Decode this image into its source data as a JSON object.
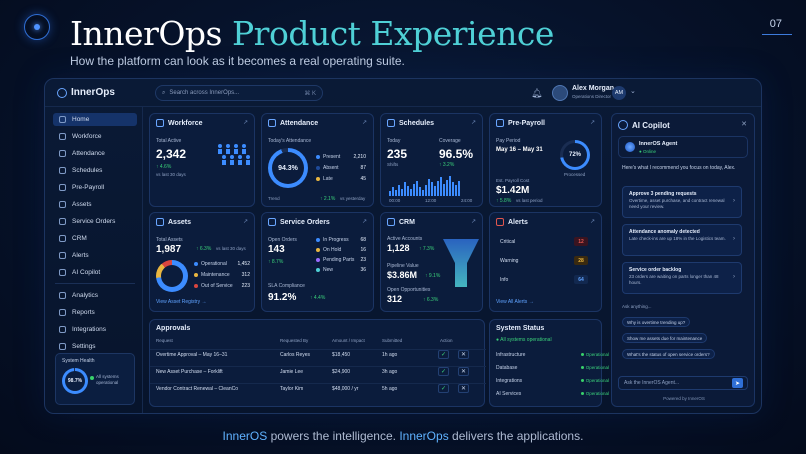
{
  "page_number": "07",
  "hero": {
    "title_white": "InnerOps",
    "title_accent": "Product Experience",
    "subtitle": "How the platform can look as it becomes a real operating suite."
  },
  "footer": {
    "p1": "InnerOS",
    "p2": " powers the intelligence. ",
    "p3": "InnerOps",
    "p4": " delivers the applications."
  },
  "app": {
    "brand": "InnerOps",
    "search_placeholder": "Search across InnerOps...",
    "search_shortcut": "⌘ K",
    "user": {
      "name": "Alex Morgan",
      "role": "Operations Director",
      "initials": "AM"
    },
    "nav": [
      "Home",
      "Workforce",
      "Attendance",
      "Schedules",
      "Pre-Payroll",
      "Assets",
      "Service Orders",
      "CRM",
      "Alerts",
      "AI Copilot",
      "Analytics",
      "Reports",
      "Integrations",
      "Settings"
    ],
    "system_health": {
      "title": "System Health",
      "value": "98.7%",
      "status": "All systems operational"
    }
  },
  "workforce": {
    "title": "Workforce",
    "label": "Total Active",
    "value": "2,342",
    "delta": "↑ 4.6%",
    "sub": "vs last 30 days"
  },
  "attendance": {
    "title": "Attendance",
    "label": "Today's Attendance",
    "value": "94.3%",
    "rows": [
      {
        "name": "Present",
        "val": "2,210",
        "color": "#3c8cff"
      },
      {
        "name": "Absent",
        "val": "87",
        "color": "#1e4a99"
      },
      {
        "name": "Late",
        "val": "45",
        "color": "#e9b640"
      }
    ],
    "trend_label": "Trend",
    "trend_delta": "↑ 2.1%",
    "trend_sub": "vs yesterday"
  },
  "schedules": {
    "title": "Schedules",
    "today_label": "Today",
    "today_value": "235",
    "today_sub": "Shifts",
    "coverage_label": "Coverage",
    "coverage_value": "96.5%",
    "coverage_delta": "↑ 3.2%",
    "bars": [
      4,
      7,
      5,
      9,
      6,
      11,
      8,
      6,
      10,
      12,
      7,
      5,
      9,
      14,
      11,
      8,
      12,
      15,
      10,
      13,
      16,
      11,
      9,
      12
    ],
    "axis": [
      "00:00",
      "12:00",
      "24:00"
    ]
  },
  "payroll": {
    "title": "Pre-Payroll",
    "period_label": "Pay Period",
    "period_value": "May 16 – May 31",
    "ring_value": "72%",
    "ring_fraction": 0.72,
    "ring_label": "Processed",
    "est_label": "Est. Payroll Cost",
    "est_value": "$1.42M",
    "est_delta": "↑ 5.8%",
    "est_sub": "vs last period"
  },
  "assets": {
    "title": "Assets",
    "label": "Total Assets",
    "value": "1,987",
    "delta": "↑ 6.3%",
    "sub": "vs last 30 days",
    "rows": [
      {
        "name": "Operational",
        "val": "1,452",
        "color": "#3c8cff"
      },
      {
        "name": "Maintenance",
        "val": "312",
        "color": "#e9b640"
      },
      {
        "name": "Out of Service",
        "val": "223",
        "color": "#d9453f"
      }
    ],
    "link": "View Asset Registry →"
  },
  "service_orders": {
    "title": "Service Orders",
    "label": "Open Orders",
    "value": "143",
    "delta": "↑ 8.7%",
    "rows": [
      {
        "name": "In Progress",
        "val": "68",
        "color": "#3c8cff"
      },
      {
        "name": "On Hold",
        "val": "16",
        "color": "#e9b640"
      },
      {
        "name": "Pending Parts",
        "val": "23",
        "color": "#9a6bff"
      },
      {
        "name": "New",
        "val": "36",
        "color": "#4fd0d6"
      }
    ],
    "sla_label": "SLA Compliance",
    "sla_value": "91.2%",
    "sla_delta": "↑ 4.4%"
  },
  "crm": {
    "title": "CRM",
    "r1_label": "Active Accounts",
    "r1_value": "1,128",
    "r1_delta": "↑ 7.3%",
    "r2_label": "Pipeline Value",
    "r2_value": "$3.86M",
    "r2_delta": "↑ 9.1%",
    "r3_label": "Open Opportunities",
    "r3_value": "312",
    "r3_delta": "↑ 6.3%"
  },
  "alerts": {
    "title": "Alerts",
    "rows": [
      {
        "name": "Critical",
        "val": "12",
        "color": "#e2574f",
        "bg": "#3a1420"
      },
      {
        "name": "Warning",
        "val": "28",
        "color": "#e9b640",
        "bg": "#3a2a10"
      },
      {
        "name": "Info",
        "val": "64",
        "color": "#5fa2ff",
        "bg": "#12284f"
      }
    ],
    "link": "View All Alerts →"
  },
  "approvals": {
    "title": "Approvals",
    "headers": [
      "Request",
      "Requested By",
      "Amount / Impact",
      "Submitted",
      "Action"
    ],
    "rows": [
      [
        "Overtime Approval – May 16–31",
        "Carlos Reyes",
        "$18,450",
        "1h ago"
      ],
      [
        "New Asset Purchase – Forklift",
        "Jamie Lee",
        "$24,900",
        "3h ago"
      ],
      [
        "Vendor Contract Renewal – CleanCo",
        "Taylor Kim",
        "$48,000 / yr",
        "5h ago"
      ]
    ]
  },
  "system_status": {
    "title": "System Status",
    "summary": "All systems operational",
    "rows": [
      {
        "name": "Infrastructure",
        "st": "Operational"
      },
      {
        "name": "Database",
        "st": "Operational"
      },
      {
        "name": "Integrations",
        "st": "Operational"
      },
      {
        "name": "AI Services",
        "st": "Operational"
      }
    ]
  },
  "copilot": {
    "title": "AI Copilot",
    "agent_name": "InnerOS Agent",
    "agent_status": "● Online",
    "intro": "Here's what I recommend you focus on today, Alex.",
    "recs": [
      {
        "t": "Approve 3 pending requests",
        "d": "Overtime, asset purchase, and contract renewal need your review."
      },
      {
        "t": "Attendance anomaly detected",
        "d": "Late check-ins are up 18% in the Logistics team."
      },
      {
        "t": "Service order backlog",
        "d": "23 orders are waiting on parts longer than 48 hours."
      }
    ],
    "ask": "Ask anything...",
    "chips": [
      "Why is overtime trending up?",
      "Show me assets due for maintenance",
      "What's the status of open service orders?"
    ],
    "input_placeholder": "Ask the InnerOS Agent...",
    "powered": "Powered by InnerOS"
  }
}
